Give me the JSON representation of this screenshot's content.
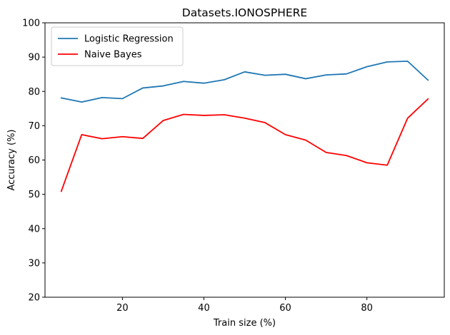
{
  "chart_data": {
    "type": "line",
    "title": "Datasets.IONOSPHERE",
    "xlabel": "Train size (%)",
    "ylabel": "Accuracy (%)",
    "xlim": [
      1,
      99
    ],
    "ylim": [
      20,
      100
    ],
    "xticks": [
      20,
      40,
      60,
      80
    ],
    "yticks": [
      20,
      30,
      40,
      50,
      60,
      70,
      80,
      90,
      100
    ],
    "grid": false,
    "legend_position": "top-left",
    "x": [
      5,
      10,
      15,
      20,
      25,
      30,
      35,
      40,
      45,
      50,
      55,
      60,
      65,
      70,
      75,
      80,
      85,
      90,
      95
    ],
    "series": [
      {
        "name": "Logistic Regression",
        "color": "#1f77b4",
        "values": [
          78.1,
          76.9,
          78.2,
          77.9,
          81.0,
          81.6,
          82.9,
          82.4,
          83.4,
          85.7,
          84.7,
          85.0,
          83.7,
          84.8,
          85.1,
          87.2,
          88.6,
          88.8,
          83.3
        ]
      },
      {
        "name": "Naive Bayes",
        "color": "#ff0000",
        "values": [
          50.9,
          67.4,
          66.2,
          66.8,
          66.3,
          71.5,
          73.3,
          73.0,
          73.2,
          72.2,
          70.9,
          67.4,
          65.8,
          62.2,
          61.3,
          59.2,
          58.5,
          72.2,
          77.8
        ]
      }
    ]
  }
}
